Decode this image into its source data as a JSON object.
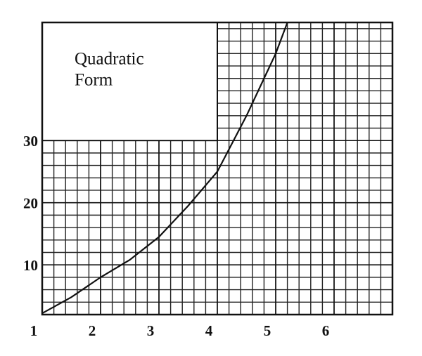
{
  "chart_data": {
    "type": "line",
    "annotation": [
      "Quadratic",
      "Form"
    ],
    "x": [
      1,
      1.5,
      2,
      2.5,
      3,
      3.5,
      4,
      4.5,
      5,
      5.2
    ],
    "series": [
      {
        "color": "#111111",
        "values": [
          2.2,
          4.8,
          8,
          10.8,
          14.5,
          19.5,
          25,
          34,
          44,
          49
        ]
      }
    ],
    "xlim": [
      1,
      7
    ],
    "ylim": [
      2,
      49
    ],
    "xticks": [
      1,
      2,
      3,
      4,
      5,
      6
    ],
    "yticks": [
      10,
      20,
      30
    ],
    "grid": true
  }
}
